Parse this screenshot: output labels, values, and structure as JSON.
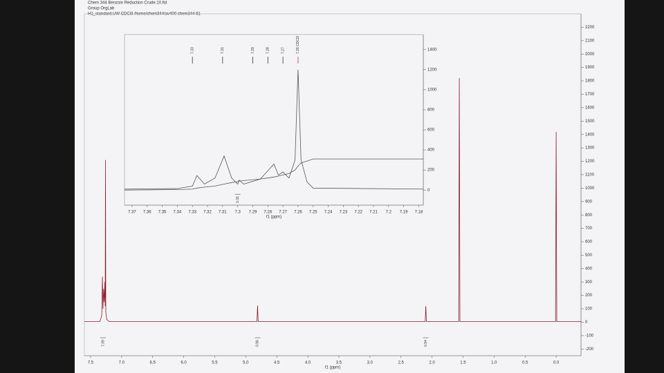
{
  "chart_data": [
    {
      "type": "line",
      "title": "Chem 344 Benzoin Reduction Crude.10.fid",
      "subtitle": [
        "Group OrgLab",
        "H1_standard.UW CDCl3 /home/chem344/av400 chem344 61"
      ],
      "xlabel": "f1 (ppm)",
      "x": [
        7.6,
        7.35,
        7.32,
        7.31,
        7.3,
        7.29,
        7.28,
        7.27,
        7.265,
        7.26,
        7.255,
        7.24,
        7.2,
        4.82,
        4.81,
        4.8,
        2.11,
        2.1,
        2.09,
        1.57,
        1.56,
        1.55,
        0.01,
        0.0,
        -0.01,
        -0.4
      ],
      "series": [
        {
          "color": "#8b1a2b",
          "values": [
            5,
            5,
            50,
            340,
            100,
            250,
            150,
            300,
            120,
            1210,
            80,
            20,
            5,
            5,
            125,
            5,
            5,
            120,
            5,
            5,
            1820,
            5,
            5,
            1420,
            5,
            5
          ]
        }
      ],
      "xlim": [
        7.6,
        -0.4
      ],
      "xticks": [
        {
          "value": 7.5,
          "label": "7.5"
        },
        {
          "value": 7.0,
          "label": "7.0"
        },
        {
          "value": 6.5,
          "label": "6.5"
        },
        {
          "value": 6.0,
          "label": "6.0"
        },
        {
          "value": 5.5,
          "label": "5.5"
        },
        {
          "value": 5.0,
          "label": "5.0"
        },
        {
          "value": 4.5,
          "label": "4.5"
        },
        {
          "value": 4.0,
          "label": "4.0"
        },
        {
          "value": 3.5,
          "label": "3.5"
        },
        {
          "value": 3.0,
          "label": "3.0"
        },
        {
          "value": 2.5,
          "label": "2.5"
        },
        {
          "value": 2.0,
          "label": "2.0"
        },
        {
          "value": 1.5,
          "label": "1.5"
        },
        {
          "value": 1.0,
          "label": "1.0"
        },
        {
          "value": 0.5,
          "label": "0.5"
        },
        {
          "value": 0.0,
          "label": "0.0"
        }
      ],
      "ylim": [
        -250,
        2300
      ],
      "yticks": [
        2200,
        2100,
        2000,
        1900,
        1800,
        1700,
        1600,
        1500,
        1400,
        1300,
        1200,
        1100,
        1000,
        900,
        800,
        700,
        600,
        500,
        400,
        300,
        200,
        100,
        0,
        -100,
        -200
      ],
      "integrals": [
        {
          "x": 7.3,
          "label": "7.09"
        },
        {
          "x": 4.81,
          "label": "0.96"
        },
        {
          "x": 2.1,
          "label": "0.94"
        }
      ]
    },
    {
      "type": "line",
      "xlabel": "f1 (ppm)",
      "x": [
        7.375,
        7.34,
        7.33,
        7.327,
        7.322,
        7.315,
        7.309,
        7.304,
        7.3,
        7.299,
        7.296,
        7.285,
        7.276,
        7.273,
        7.27,
        7.266,
        7.262,
        7.26,
        7.258,
        7.254,
        7.25,
        7.177
      ],
      "series": [
        {
          "color": "#555555",
          "values": [
            10,
            15,
            40,
            145,
            60,
            120,
            340,
            120,
            60,
            100,
            60,
            110,
            260,
            150,
            180,
            120,
            300,
            1200,
            300,
            80,
            20,
            10
          ]
        },
        {
          "color": "#555555",
          "values": [
            0,
            5,
            10,
            20,
            30,
            40,
            60,
            75,
            85,
            90,
            95,
            110,
            130,
            140,
            150,
            165,
            200,
            240,
            270,
            290,
            310,
            310
          ]
        }
      ],
      "xlim": [
        7.375,
        7.177
      ],
      "xticks": [
        7.37,
        7.36,
        7.35,
        7.34,
        7.33,
        7.32,
        7.31,
        7.3,
        7.29,
        7.28,
        7.27,
        7.26,
        7.25,
        7.24,
        7.23,
        7.22,
        7.21,
        7.2,
        7.19,
        7.18
      ],
      "ylim": [
        -150,
        1550
      ],
      "yticks": [
        1400,
        1200,
        1000,
        800,
        600,
        400,
        200,
        0
      ],
      "annotations": [
        {
          "x": 7.33,
          "label": "7.33",
          "color": "#333333"
        },
        {
          "x": 7.31,
          "label": "7.31",
          "color": "#333333"
        },
        {
          "x": 7.29,
          "label": "7.29",
          "color": "#333333"
        },
        {
          "x": 7.28,
          "label": "7.28",
          "color": "#333333"
        },
        {
          "x": 7.27,
          "label": "7.27",
          "color": "#333333"
        },
        {
          "x": 7.26,
          "label": "7.26 CDCl3",
          "color": "#c0392b"
        }
      ],
      "integrals": [
        {
          "x": 7.3,
          "label": "1.03"
        }
      ]
    }
  ]
}
